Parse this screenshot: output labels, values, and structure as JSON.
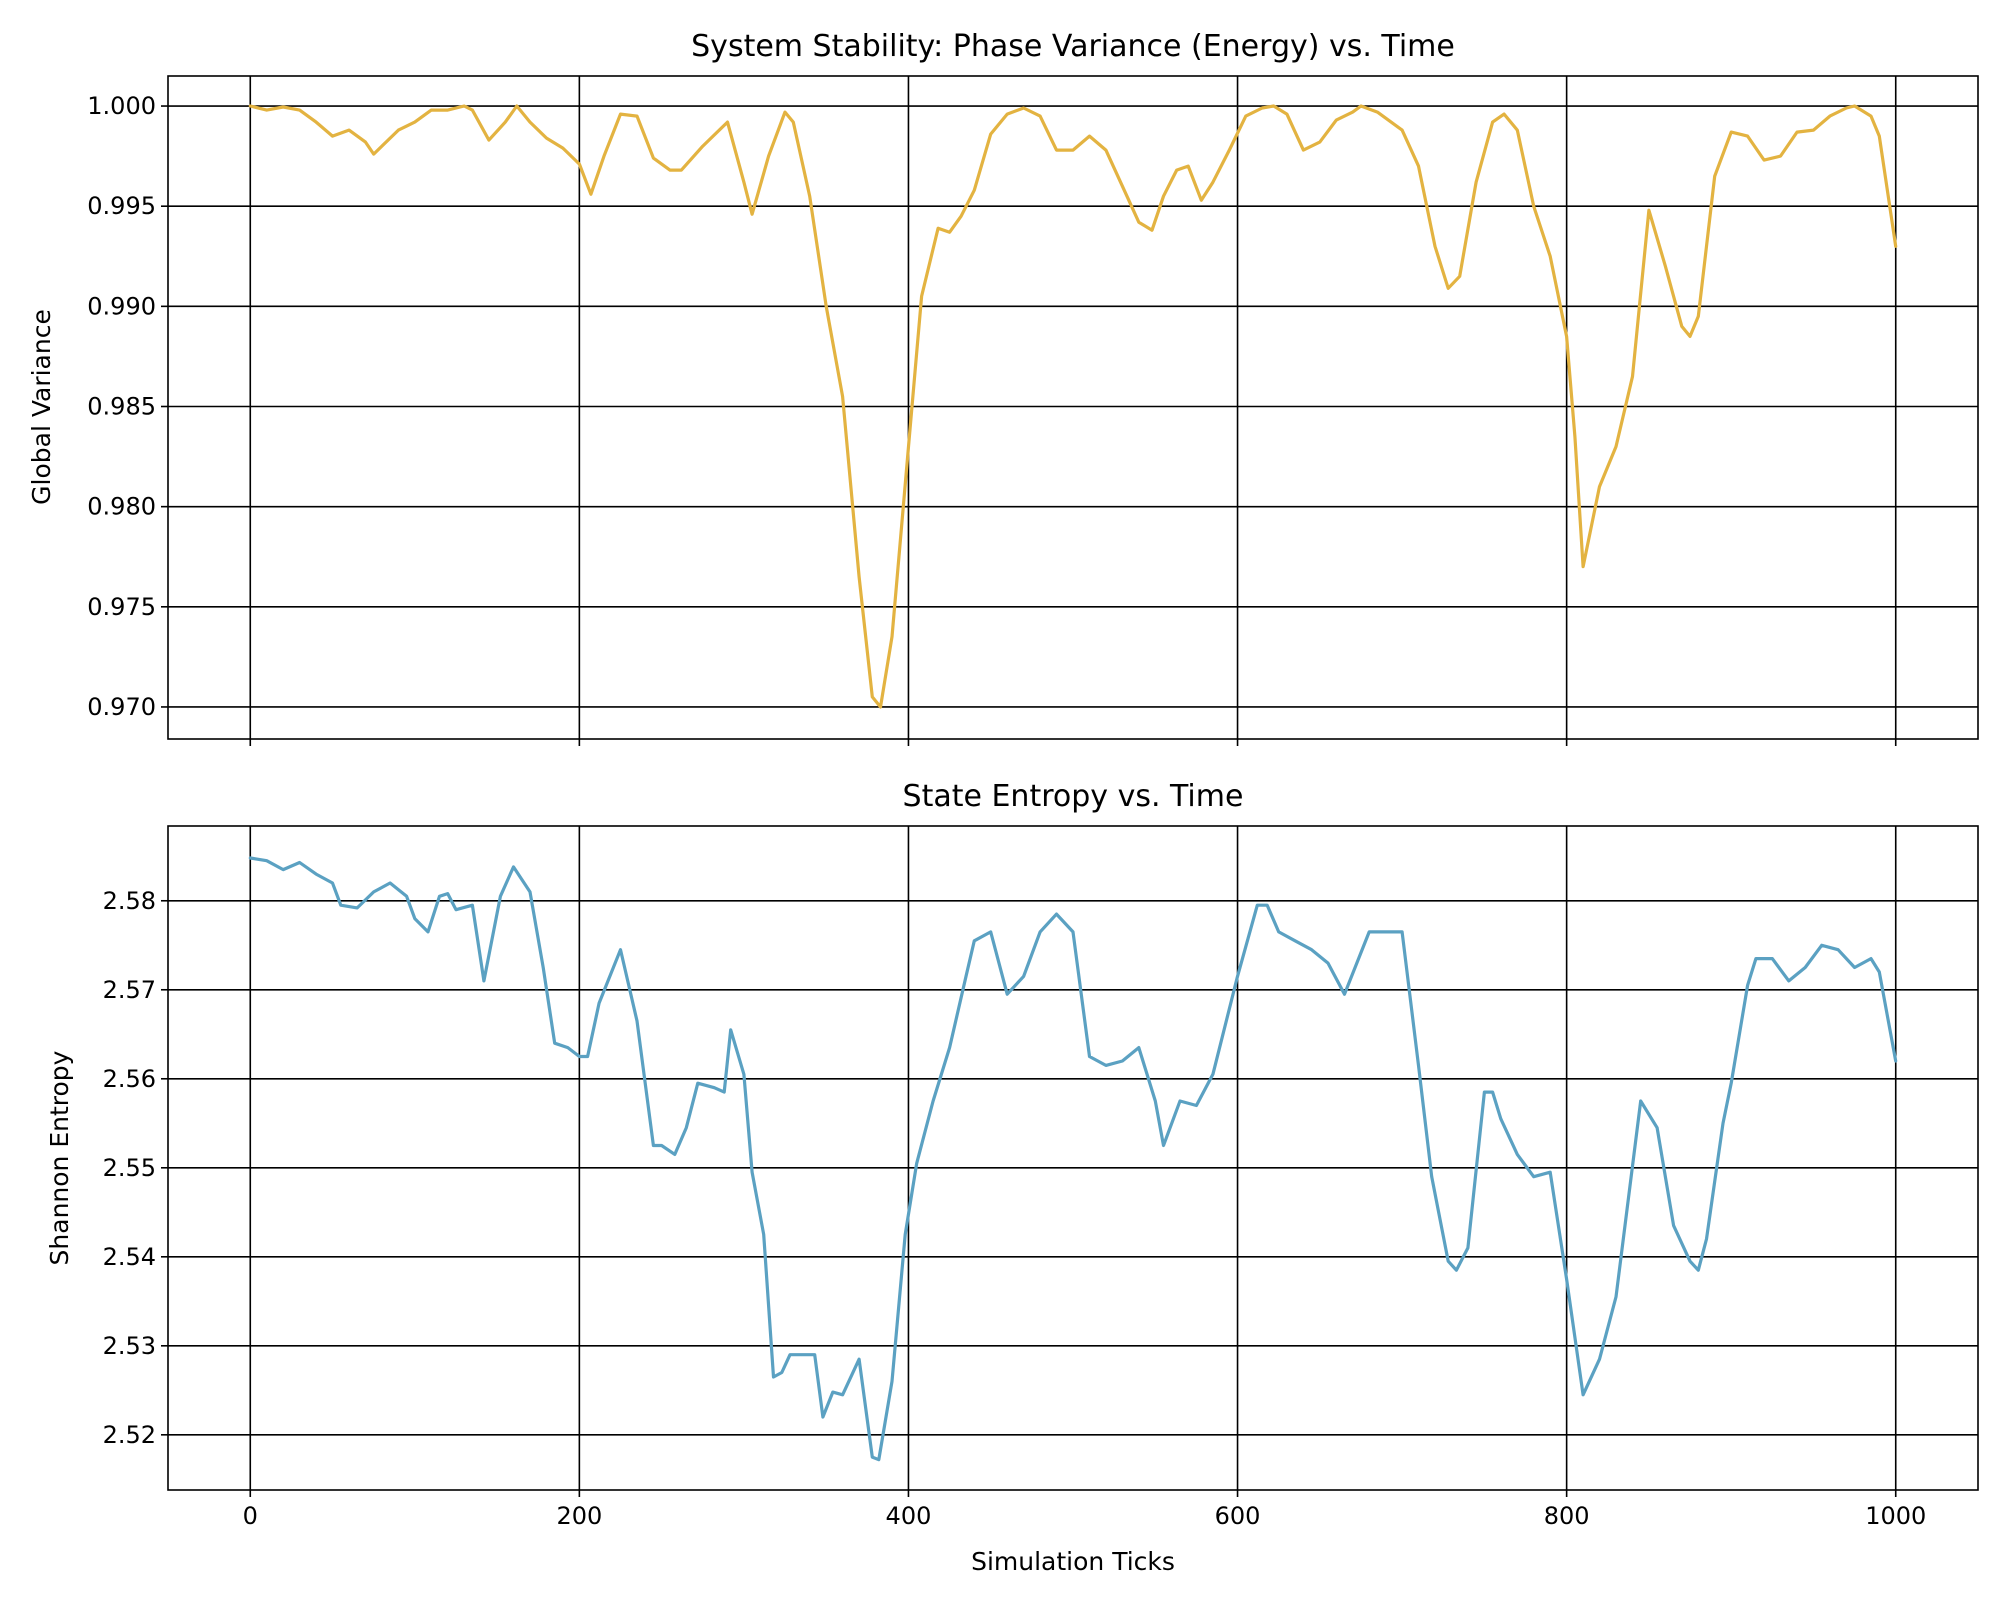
{
  "chart_data": [
    {
      "type": "line",
      "title": "System Stability: Phase Variance (Energy) vs. Time",
      "xlabel": "",
      "ylabel": "Global Variance",
      "xlim": [
        -50,
        1050
      ],
      "ylim": [
        0.9684,
        1.0015
      ],
      "xticks": [
        0,
        200,
        400,
        600,
        800,
        1000
      ],
      "yticks": [
        0.97,
        0.975,
        0.98,
        0.985,
        0.99,
        0.995,
        1.0
      ],
      "ytick_labels": [
        "0.970",
        "0.975",
        "0.980",
        "0.985",
        "0.990",
        "0.995",
        "1.000"
      ],
      "grid": true,
      "color": "#E3B341",
      "series": [
        {
          "x": [
            0,
            10,
            20,
            30,
            40,
            50,
            60,
            70,
            75,
            80,
            90,
            100,
            110,
            120,
            130,
            135,
            145,
            155,
            162,
            170,
            180,
            190,
            200,
            207,
            215,
            225,
            235,
            245,
            255,
            262,
            275,
            290,
            300,
            305,
            315,
            325,
            330,
            340,
            350,
            360,
            370,
            378,
            383,
            390,
            400,
            408,
            418,
            425,
            432,
            440,
            450,
            460,
            470,
            480,
            490,
            500,
            510,
            520,
            530,
            540,
            548,
            555,
            563,
            570,
            578,
            585,
            595,
            605,
            615,
            622,
            630,
            640,
            650,
            660,
            670,
            675,
            685,
            700,
            710,
            720,
            728,
            735,
            745,
            755,
            762,
            770,
            780,
            790,
            800,
            805,
            810,
            820,
            830,
            840,
            850,
            860,
            870,
            875,
            880,
            890,
            900,
            910,
            920,
            930,
            940,
            950,
            960,
            970,
            975,
            985,
            990,
            1000
          ],
          "y": [
            1.0,
            0.9998,
            0.99995,
            0.9998,
            0.9992,
            0.9985,
            0.9988,
            0.9982,
            0.9976,
            0.998,
            0.9988,
            0.9992,
            0.9998,
            0.9998,
            1.0,
            0.9998,
            0.9983,
            0.9992,
            1.0,
            0.9992,
            0.9984,
            0.9979,
            0.9971,
            0.9956,
            0.9975,
            0.9996,
            0.9995,
            0.9974,
            0.9968,
            0.9968,
            0.998,
            0.9992,
            0.9962,
            0.9946,
            0.9975,
            0.9997,
            0.9992,
            0.9955,
            0.99,
            0.9855,
            0.9765,
            0.9705,
            0.97,
            0.9735,
            0.983,
            0.9905,
            0.9939,
            0.9937,
            0.9945,
            0.9958,
            0.9986,
            0.9996,
            0.9999,
            0.9995,
            0.9978,
            0.9978,
            0.9985,
            0.9978,
            0.996,
            0.9942,
            0.9938,
            0.9955,
            0.9968,
            0.997,
            0.9953,
            0.9962,
            0.9978,
            0.9995,
            0.9999,
            1.0,
            0.9996,
            0.9978,
            0.9982,
            0.9993,
            0.9997,
            1.0,
            0.9997,
            0.9988,
            0.997,
            0.993,
            0.9909,
            0.9915,
            0.9962,
            0.9992,
            0.9996,
            0.9988,
            0.995,
            0.9925,
            0.9885,
            0.9835,
            0.977,
            0.981,
            0.983,
            0.9865,
            0.9948,
            0.992,
            0.989,
            0.9885,
            0.9895,
            0.9965,
            0.9987,
            0.9985,
            0.9973,
            0.9975,
            0.9987,
            0.9988,
            0.9995,
            0.9999,
            1.0,
            0.9995,
            0.9985,
            0.993
          ]
        }
      ]
    },
    {
      "type": "line",
      "title": "State Entropy vs. Time",
      "xlabel": "Simulation Ticks",
      "ylabel": "Shannon Entropy",
      "xlim": [
        -50,
        1050
      ],
      "ylim": [
        2.5138,
        2.5884
      ],
      "xticks": [
        0,
        200,
        400,
        600,
        800,
        1000
      ],
      "yticks": [
        2.52,
        2.53,
        2.54,
        2.55,
        2.56,
        2.57,
        2.58
      ],
      "ytick_labels": [
        "2.52",
        "2.53",
        "2.54",
        "2.55",
        "2.56",
        "2.57",
        "2.58"
      ],
      "grid": true,
      "color": "#5BA1C2",
      "series": [
        {
          "x": [
            0,
            10,
            20,
            30,
            40,
            50,
            55,
            65,
            75,
            85,
            95,
            100,
            108,
            115,
            120,
            125,
            135,
            142,
            152,
            160,
            170,
            178,
            185,
            193,
            200,
            205,
            212,
            225,
            235,
            245,
            250,
            258,
            265,
            272,
            282,
            288,
            292,
            300,
            305,
            312,
            318,
            323,
            328,
            335,
            343,
            348,
            354,
            360,
            370,
            378,
            382,
            390,
            398,
            405,
            415,
            425,
            435,
            440,
            450,
            460,
            470,
            480,
            490,
            500,
            510,
            520,
            530,
            540,
            550,
            555,
            565,
            575,
            585,
            600,
            612,
            618,
            625,
            635,
            645,
            655,
            665,
            680,
            690,
            700,
            710,
            718,
            728,
            733,
            740,
            750,
            755,
            760,
            770,
            780,
            790,
            800,
            810,
            820,
            830,
            845,
            855,
            865,
            875,
            880,
            885,
            895,
            900,
            910,
            915,
            925,
            935,
            945,
            955,
            965,
            975,
            985,
            990,
            1000
          ],
          "y": [
            2.5848,
            2.5845,
            2.5835,
            2.5843,
            2.583,
            2.582,
            2.5795,
            2.5792,
            2.581,
            2.582,
            2.5805,
            2.578,
            2.5765,
            2.5805,
            2.5808,
            2.579,
            2.5795,
            2.571,
            2.5805,
            2.5838,
            2.581,
            2.5725,
            2.564,
            2.5635,
            2.5625,
            2.5625,
            2.5685,
            2.5745,
            2.5665,
            2.5525,
            2.5525,
            2.5515,
            2.5545,
            2.5595,
            2.559,
            2.5585,
            2.5655,
            2.5605,
            2.5495,
            2.5425,
            2.5265,
            2.527,
            2.529,
            2.529,
            2.529,
            2.522,
            2.5248,
            2.5245,
            2.5285,
            2.5175,
            2.5172,
            2.526,
            2.5425,
            2.5505,
            2.5575,
            2.5635,
            2.5715,
            2.5755,
            2.5765,
            2.5695,
            2.5715,
            2.5765,
            2.5785,
            2.5765,
            2.5625,
            2.5615,
            2.562,
            2.5635,
            2.5575,
            2.5525,
            2.5575,
            2.557,
            2.5605,
            2.5715,
            2.5795,
            2.5795,
            2.5765,
            2.5755,
            2.5745,
            2.573,
            2.5695,
            2.5765,
            2.5765,
            2.5765,
            2.5615,
            2.549,
            2.5395,
            2.5385,
            2.541,
            2.5585,
            2.5585,
            2.5555,
            2.5515,
            2.549,
            2.5495,
            2.5375,
            2.5245,
            2.5285,
            2.5355,
            2.5575,
            2.5545,
            2.5435,
            2.5395,
            2.5385,
            2.542,
            2.555,
            2.5595,
            2.5705,
            2.5735,
            2.5735,
            2.571,
            2.5725,
            2.575,
            2.5745,
            2.5725,
            2.5735,
            2.572,
            2.562
          ]
        }
      ]
    }
  ]
}
